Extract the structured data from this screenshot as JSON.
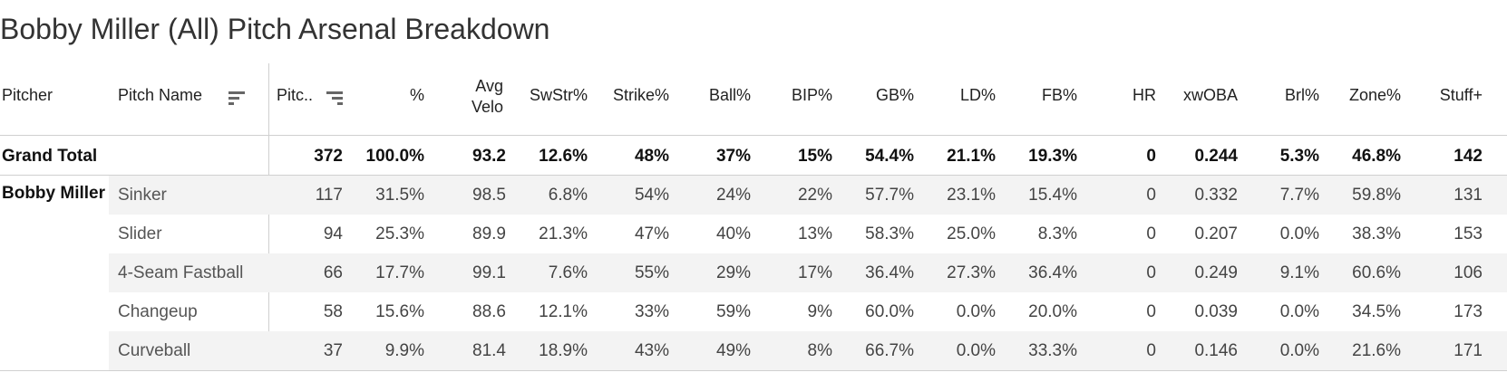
{
  "title": "Bobby Miller (All) Pitch Arsenal Breakdown",
  "columns": {
    "pitcher": "Pitcher",
    "pitch_name": "Pitch Name",
    "pitches": "Pitc..",
    "pct": "%",
    "avg_velo_line1": "Avg",
    "avg_velo_line2": "Velo",
    "swstr": "SwStr%",
    "strike": "Strike%",
    "ball": "Ball%",
    "bip": "BIP%",
    "gb": "GB%",
    "ld": "LD%",
    "fb": "FB%",
    "hr": "HR",
    "xwoba": "xwOBA",
    "brl": "Brl%",
    "zone": "Zone%",
    "stuff": "Stuff+"
  },
  "sort_icons": [
    "sort-icon",
    "sort-icon"
  ],
  "grand_total": {
    "label": "Grand Total",
    "pitches": "372",
    "pct": "100.0%",
    "avg_velo": "93.2",
    "swstr": "12.6%",
    "strike": "48%",
    "ball": "37%",
    "bip": "15%",
    "gb": "54.4%",
    "ld": "21.1%",
    "fb": "19.3%",
    "hr": "0",
    "xwoba": "0.244",
    "brl": "5.3%",
    "zone": "46.8%",
    "stuff": "142"
  },
  "pitcher_name": "Bobby Miller",
  "rows": [
    {
      "name": "Sinker",
      "pitches": "117",
      "pct": "31.5%",
      "avg_velo": "98.5",
      "swstr": "6.8%",
      "strike": "54%",
      "ball": "24%",
      "bip": "22%",
      "gb": "57.7%",
      "ld": "23.1%",
      "fb": "15.4%",
      "hr": "0",
      "xwoba": "0.332",
      "brl": "7.7%",
      "zone": "59.8%",
      "stuff": "131"
    },
    {
      "name": "Slider",
      "pitches": "94",
      "pct": "25.3%",
      "avg_velo": "89.9",
      "swstr": "21.3%",
      "strike": "47%",
      "ball": "40%",
      "bip": "13%",
      "gb": "58.3%",
      "ld": "25.0%",
      "fb": "8.3%",
      "hr": "0",
      "xwoba": "0.207",
      "brl": "0.0%",
      "zone": "38.3%",
      "stuff": "153"
    },
    {
      "name": "4-Seam Fastball",
      "pitches": "66",
      "pct": "17.7%",
      "avg_velo": "99.1",
      "swstr": "7.6%",
      "strike": "55%",
      "ball": "29%",
      "bip": "17%",
      "gb": "36.4%",
      "ld": "27.3%",
      "fb": "36.4%",
      "hr": "0",
      "xwoba": "0.249",
      "brl": "9.1%",
      "zone": "60.6%",
      "stuff": "106"
    },
    {
      "name": "Changeup",
      "pitches": "58",
      "pct": "15.6%",
      "avg_velo": "88.6",
      "swstr": "12.1%",
      "strike": "33%",
      "ball": "59%",
      "bip": "9%",
      "gb": "60.0%",
      "ld": "0.0%",
      "fb": "20.0%",
      "hr": "0",
      "xwoba": "0.039",
      "brl": "0.0%",
      "zone": "34.5%",
      "stuff": "173"
    },
    {
      "name": "Curveball",
      "pitches": "37",
      "pct": "9.9%",
      "avg_velo": "81.4",
      "swstr": "18.9%",
      "strike": "43%",
      "ball": "49%",
      "bip": "8%",
      "gb": "66.7%",
      "ld": "0.0%",
      "fb": "33.3%",
      "hr": "0",
      "xwoba": "0.146",
      "brl": "0.0%",
      "zone": "21.6%",
      "stuff": "171"
    }
  ]
}
